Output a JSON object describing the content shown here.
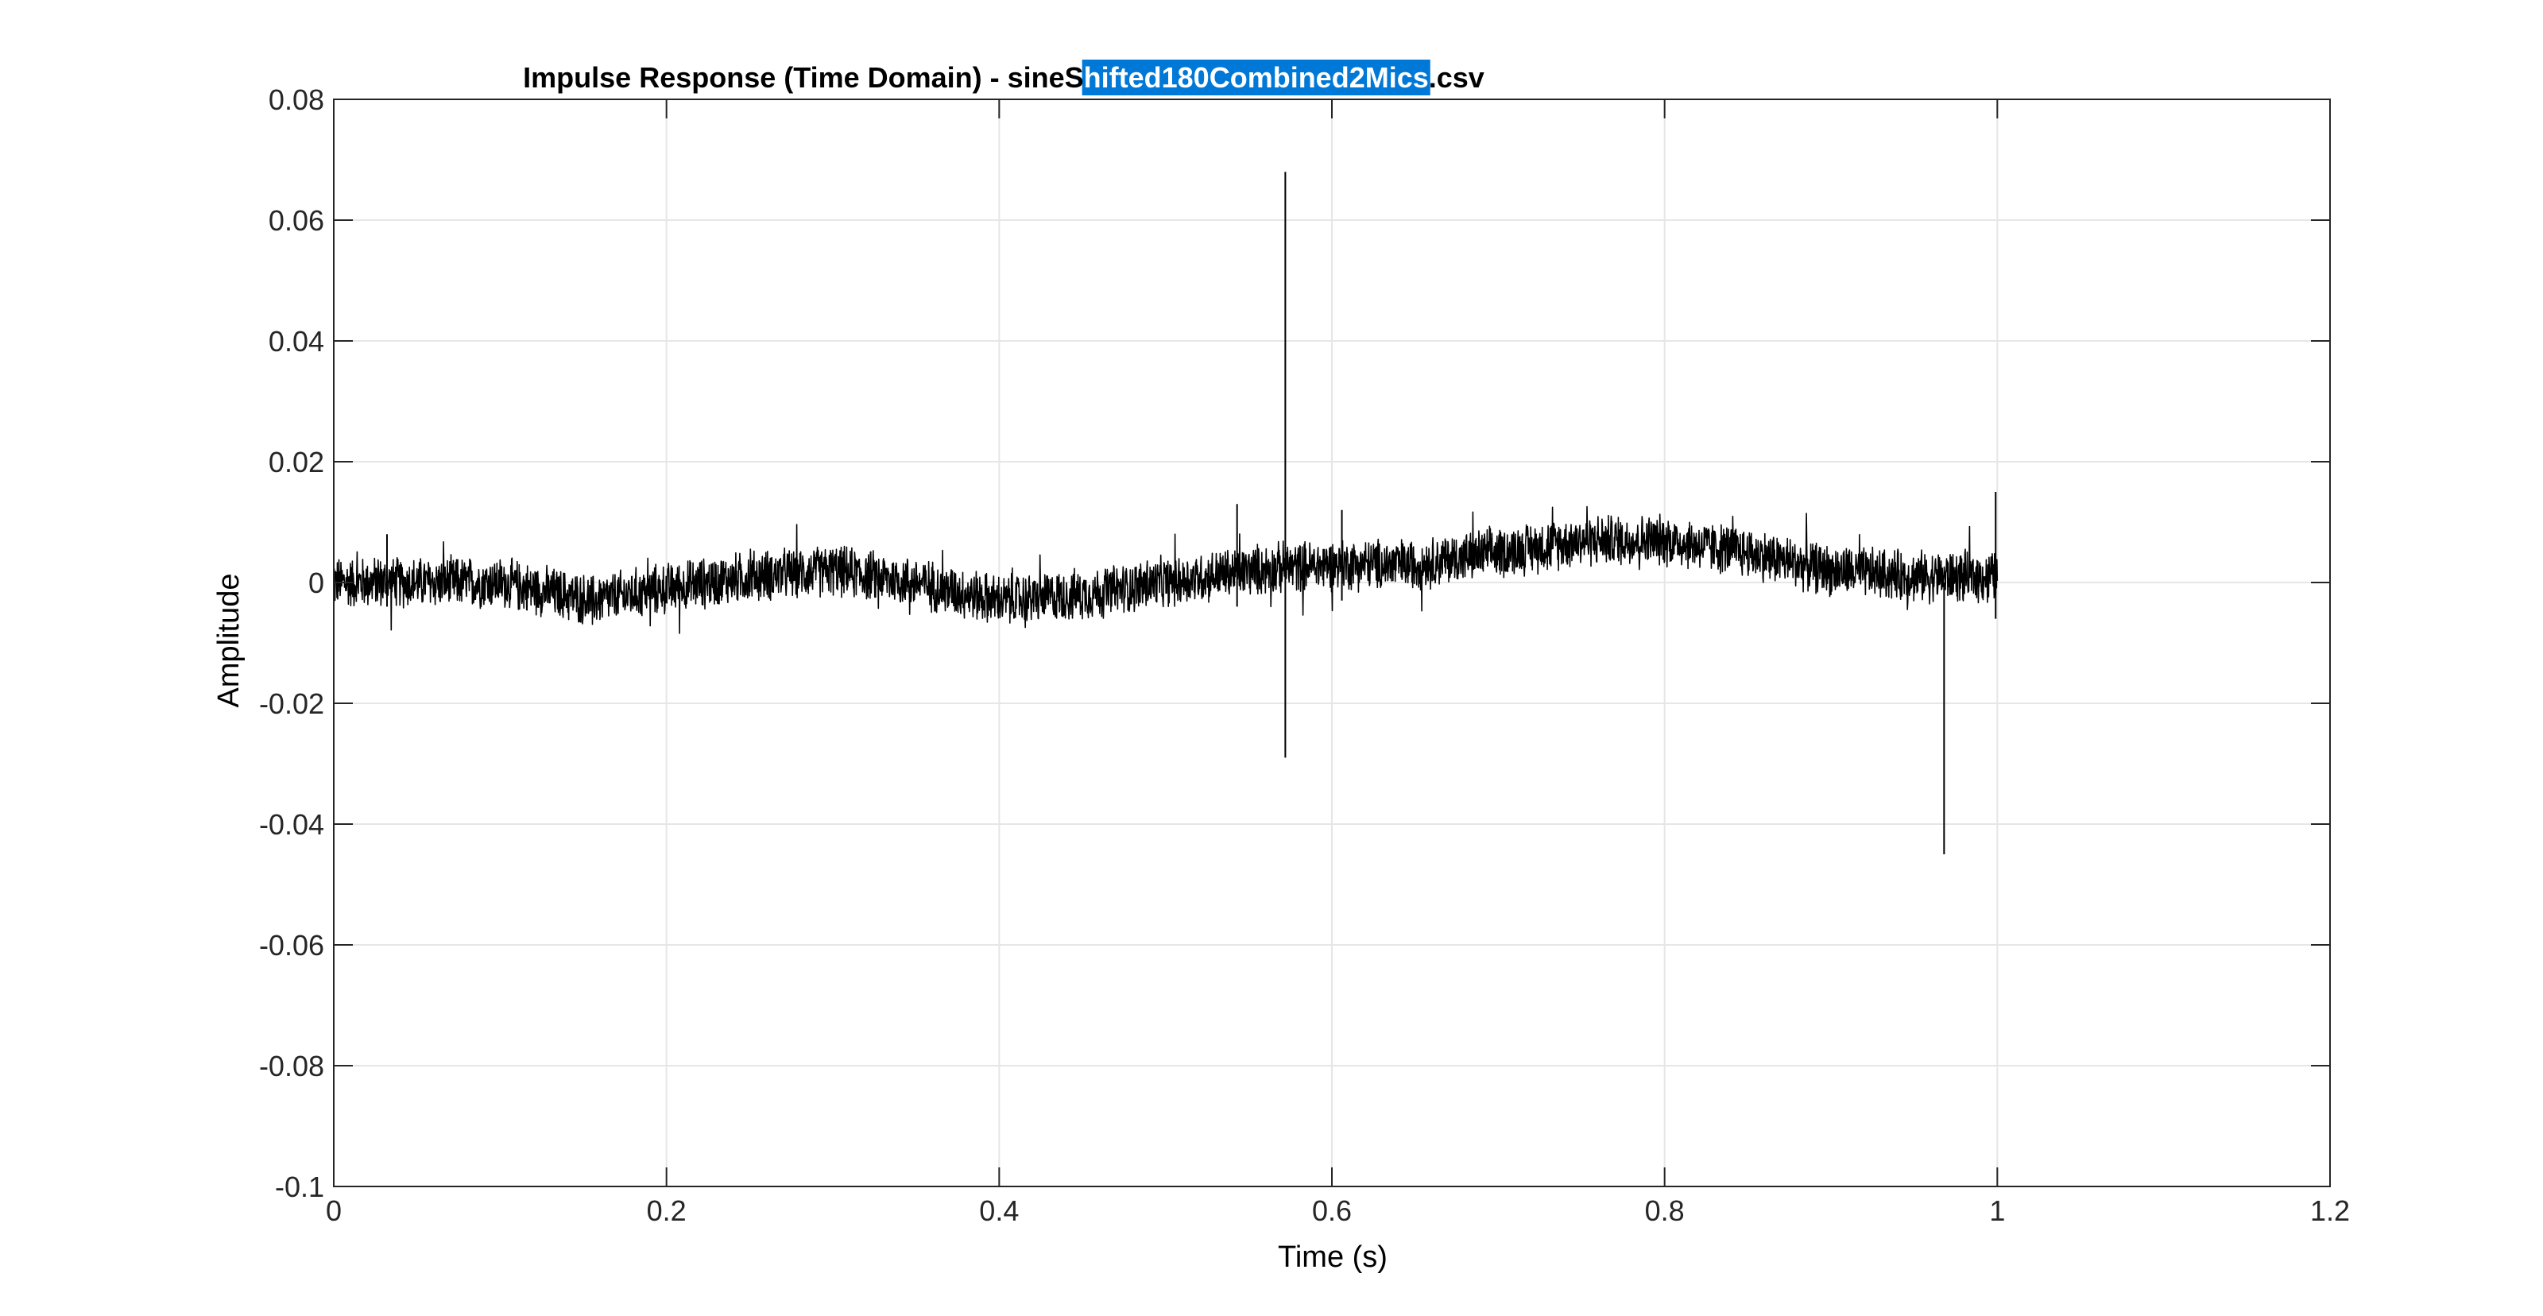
{
  "chart_data": {
    "type": "line",
    "title_parts": {
      "prefix": "Impulse Response (Time Domain) - sineS",
      "highlighted": "hifted180Combined2Mics",
      "suffix": ".csv"
    },
    "title_highlight_color": "#0078D7",
    "xlabel": "Time (s)",
    "ylabel": "Amplitude",
    "xlim": [
      0,
      1.2
    ],
    "ylim": [
      -0.1,
      0.08
    ],
    "x_ticks": [
      0,
      0.2,
      0.4,
      0.6,
      0.8,
      1,
      1.2
    ],
    "x_tick_labels": [
      "0",
      "0.2",
      "0.4",
      "0.6",
      "0.8",
      "1",
      "1.2"
    ],
    "y_ticks": [
      -0.1,
      -0.08,
      -0.06,
      -0.04,
      -0.02,
      0,
      0.02,
      0.04,
      0.06,
      0.08
    ],
    "y_tick_labels": [
      "-0.1",
      "-0.08",
      "-0.06",
      "-0.04",
      "-0.02",
      "0",
      "0.02",
      "0.04",
      "0.06",
      "0.08"
    ],
    "grid": true,
    "line_color": "#000000",
    "series": [
      {
        "x_range": [
          0,
          1.0
        ],
        "noise_amplitude": 0.004,
        "envelope": [
          [
            0.0,
            0.0
          ],
          [
            0.05,
            0.0
          ],
          [
            0.1,
            0.0
          ],
          [
            0.155,
            -0.003
          ],
          [
            0.2,
            -0.001
          ],
          [
            0.25,
            0.001
          ],
          [
            0.3,
            0.002
          ],
          [
            0.35,
            0.0
          ],
          [
            0.4,
            -0.003
          ],
          [
            0.45,
            -0.002
          ],
          [
            0.5,
            0.0
          ],
          [
            0.55,
            0.002
          ],
          [
            0.6,
            0.003
          ],
          [
            0.65,
            0.003
          ],
          [
            0.7,
            0.005
          ],
          [
            0.75,
            0.007
          ],
          [
            0.8,
            0.007
          ],
          [
            0.85,
            0.005
          ],
          [
            0.9,
            0.002
          ],
          [
            0.95,
            0.001
          ],
          [
            1.0,
            0.001
          ]
        ],
        "spikes": [
          {
            "x": 0.572,
            "min": -0.029,
            "max": 0.068
          },
          {
            "x": 0.968,
            "min": -0.045,
            "max": 0.0
          },
          {
            "x": 0.543,
            "min": -0.004,
            "max": 0.013
          },
          {
            "x": 0.606,
            "min": -0.003,
            "max": 0.012
          },
          {
            "x": 0.999,
            "min": -0.006,
            "max": 0.015
          },
          {
            "x": 0.032,
            "min": -0.004,
            "max": 0.008
          }
        ]
      }
    ]
  }
}
